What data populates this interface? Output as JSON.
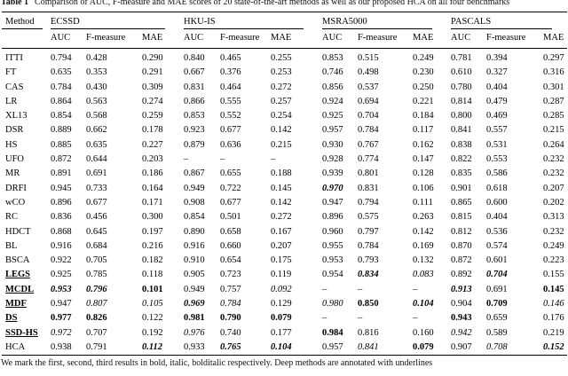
{
  "caption": {
    "label": "Table 1",
    "text": "Comparison of AUC, F-measure and MAE scores of 20 state-of-the-art methods as well as our proposed HCA on all four benchmarks"
  },
  "table": {
    "method_header": "Method",
    "benchmarks": [
      "ECSSD",
      "HKU-IS",
      "MSRA5000",
      "PASCALS"
    ],
    "metrics": [
      "AUC",
      "F-measure",
      "MAE"
    ],
    "rows": [
      {
        "method": "ITTI",
        "deep": false,
        "values": [
          "0.794",
          "0.428",
          "0.290",
          "0.840",
          "0.465",
          "0.255",
          "0.853",
          "0.515",
          "0.249",
          "0.781",
          "0.394",
          "0.297"
        ],
        "styles": [
          "",
          "",
          "",
          "",
          "",
          "",
          "",
          "",
          "",
          "",
          "",
          ""
        ]
      },
      {
        "method": "FT",
        "deep": false,
        "values": [
          "0.635",
          "0.353",
          "0.291",
          "0.667",
          "0.376",
          "0.253",
          "0.746",
          "0.498",
          "0.230",
          "0.610",
          "0.327",
          "0.316"
        ],
        "styles": [
          "",
          "",
          "",
          "",
          "",
          "",
          "",
          "",
          "",
          "",
          "",
          ""
        ]
      },
      {
        "method": "CAS",
        "deep": false,
        "values": [
          "0.784",
          "0.430",
          "0.309",
          "0.831",
          "0.464",
          "0.272",
          "0.856",
          "0.537",
          "0.250",
          "0.780",
          "0.404",
          "0.301"
        ],
        "styles": [
          "",
          "",
          "",
          "",
          "",
          "",
          "",
          "",
          "",
          "",
          "",
          ""
        ]
      },
      {
        "method": "LR",
        "deep": false,
        "values": [
          "0.864",
          "0.563",
          "0.274",
          "0.866",
          "0.555",
          "0.257",
          "0.924",
          "0.694",
          "0.221",
          "0.814",
          "0.479",
          "0.287"
        ],
        "styles": [
          "",
          "",
          "",
          "",
          "",
          "",
          "",
          "",
          "",
          "",
          "",
          ""
        ]
      },
      {
        "method": "XL13",
        "deep": false,
        "values": [
          "0.854",
          "0.568",
          "0.259",
          "0.853",
          "0.552",
          "0.254",
          "0.925",
          "0.704",
          "0.184",
          "0.800",
          "0.469",
          "0.285"
        ],
        "styles": [
          "",
          "",
          "",
          "",
          "",
          "",
          "",
          "",
          "",
          "",
          "",
          ""
        ]
      },
      {
        "method": "DSR",
        "deep": false,
        "values": [
          "0.889",
          "0.662",
          "0.178",
          "0.923",
          "0.677",
          "0.142",
          "0.957",
          "0.784",
          "0.117",
          "0.841",
          "0.557",
          "0.215"
        ],
        "styles": [
          "",
          "",
          "",
          "",
          "",
          "",
          "",
          "",
          "",
          "",
          "",
          ""
        ]
      },
      {
        "method": "HS",
        "deep": false,
        "values": [
          "0.885",
          "0.635",
          "0.227",
          "0.879",
          "0.636",
          "0.215",
          "0.930",
          "0.767",
          "0.162",
          "0.838",
          "0.531",
          "0.264"
        ],
        "styles": [
          "",
          "",
          "",
          "",
          "",
          "",
          "",
          "",
          "",
          "",
          "",
          ""
        ]
      },
      {
        "method": "UFO",
        "deep": false,
        "values": [
          "0.872",
          "0.644",
          "0.203",
          "–",
          "–",
          "–",
          "0.928",
          "0.774",
          "0.147",
          "0.822",
          "0.553",
          "0.232"
        ],
        "styles": [
          "",
          "",
          "",
          "",
          "",
          "",
          "",
          "",
          "",
          "",
          "",
          ""
        ]
      },
      {
        "method": "MR",
        "deep": false,
        "values": [
          "0.891",
          "0.691",
          "0.186",
          "0.867",
          "0.655",
          "0.188",
          "0.939",
          "0.801",
          "0.128",
          "0.835",
          "0.586",
          "0.232"
        ],
        "styles": [
          "",
          "",
          "",
          "",
          "",
          "",
          "",
          "",
          "",
          "",
          "",
          ""
        ]
      },
      {
        "method": "DRFI",
        "deep": false,
        "values": [
          "0.945",
          "0.733",
          "0.164",
          "0.949",
          "0.722",
          "0.145",
          "0.970",
          "0.831",
          "0.106",
          "0.901",
          "0.618",
          "0.207"
        ],
        "styles": [
          "",
          "",
          "",
          "",
          "",
          "",
          "bi",
          "",
          "",
          "",
          "",
          ""
        ]
      },
      {
        "method": "wCO",
        "deep": false,
        "values": [
          "0.896",
          "0.677",
          "0.171",
          "0.908",
          "0.677",
          "0.142",
          "0.947",
          "0.794",
          "0.111",
          "0.865",
          "0.600",
          "0.202"
        ],
        "styles": [
          "",
          "",
          "",
          "",
          "",
          "",
          "",
          "",
          "",
          "",
          "",
          ""
        ]
      },
      {
        "method": "RC",
        "deep": false,
        "values": [
          "0.836",
          "0.456",
          "0.300",
          "0.854",
          "0.501",
          "0.272",
          "0.896",
          "0.575",
          "0.263",
          "0.815",
          "0.404",
          "0.313"
        ],
        "styles": [
          "",
          "",
          "",
          "",
          "",
          "",
          "",
          "",
          "",
          "",
          "",
          ""
        ]
      },
      {
        "method": "HDCT",
        "deep": false,
        "values": [
          "0.868",
          "0.645",
          "0.197",
          "0.890",
          "0.658",
          "0.167",
          "0.960",
          "0.797",
          "0.142",
          "0.812",
          "0.536",
          "0.232"
        ],
        "styles": [
          "",
          "",
          "",
          "",
          "",
          "",
          "",
          "",
          "",
          "",
          "",
          ""
        ]
      },
      {
        "method": "BL",
        "deep": false,
        "values": [
          "0.916",
          "0.684",
          "0.216",
          "0.916",
          "0.660",
          "0.207",
          "0.955",
          "0.784",
          "0.169",
          "0.870",
          "0.574",
          "0.249"
        ],
        "styles": [
          "",
          "",
          "",
          "",
          "",
          "",
          "",
          "",
          "",
          "",
          "",
          ""
        ]
      },
      {
        "method": "BSCA",
        "deep": false,
        "values": [
          "0.922",
          "0.705",
          "0.182",
          "0.910",
          "0.654",
          "0.175",
          "0.953",
          "0.793",
          "0.132",
          "0.872",
          "0.601",
          "0.223"
        ],
        "styles": [
          "",
          "",
          "",
          "",
          "",
          "",
          "",
          "",
          "",
          "",
          "",
          ""
        ]
      },
      {
        "method": "LEGS",
        "deep": true,
        "values": [
          "0.925",
          "0.785",
          "0.118",
          "0.905",
          "0.723",
          "0.119",
          "0.954",
          "0.834",
          "0.083",
          "0.892",
          "0.704",
          "0.155"
        ],
        "styles": [
          "",
          "",
          "",
          "",
          "",
          "",
          "",
          "bi",
          "i",
          "",
          "bi",
          ""
        ]
      },
      {
        "method": "MCDL",
        "deep": true,
        "values": [
          "0.953",
          "0.796",
          "0.101",
          "0.949",
          "0.757",
          "0.092",
          "–",
          "–",
          "–",
          "0.913",
          "0.691",
          "0.145"
        ],
        "styles": [
          "bi",
          "bi",
          "b",
          "",
          "",
          "i",
          "",
          "",
          "",
          "bi",
          "",
          "b"
        ]
      },
      {
        "method": "MDF",
        "deep": true,
        "values": [
          "0.947",
          "0.807",
          "0.105",
          "0.969",
          "0.784",
          "0.129",
          "0.980",
          "0.850",
          "0.104",
          "0.904",
          "0.709",
          "0.146"
        ],
        "styles": [
          "",
          "i",
          "i",
          "bi",
          "i",
          "",
          "i",
          "b",
          "bi",
          "",
          "b",
          "i"
        ]
      },
      {
        "method": "DS",
        "deep": true,
        "values": [
          "0.977",
          "0.826",
          "0.122",
          "0.981",
          "0.790",
          "0.079",
          "–",
          "–",
          "–",
          "0.943",
          "0.659",
          "0.176"
        ],
        "styles": [
          "b",
          "b",
          "",
          "b",
          "b",
          "b",
          "",
          "",
          "",
          "b",
          "",
          ""
        ]
      },
      {
        "method": "SSD-HS",
        "deep": true,
        "values": [
          "0.972",
          "0.707",
          "0.192",
          "0.976",
          "0.740",
          "0.177",
          "0.984",
          "0.816",
          "0.160",
          "0.942",
          "0.589",
          "0.219"
        ],
        "styles": [
          "i",
          "",
          "",
          "i",
          "",
          "",
          "b",
          "",
          "",
          "i",
          "",
          ""
        ]
      },
      {
        "method": "HCA",
        "deep": false,
        "values": [
          "0.938",
          "0.791",
          "0.112",
          "0.933",
          "0.765",
          "0.104",
          "0.957",
          "0.841",
          "0.079",
          "0.907",
          "0.708",
          "0.152"
        ],
        "styles": [
          "",
          "",
          "bi",
          "",
          "bi",
          "bi",
          "",
          "i",
          "b",
          "",
          "i",
          "bi"
        ]
      }
    ]
  },
  "footnote": "We mark the first, second, third results in bold, italic, bolditalic respectively. Deep methods are annotated with underlines"
}
